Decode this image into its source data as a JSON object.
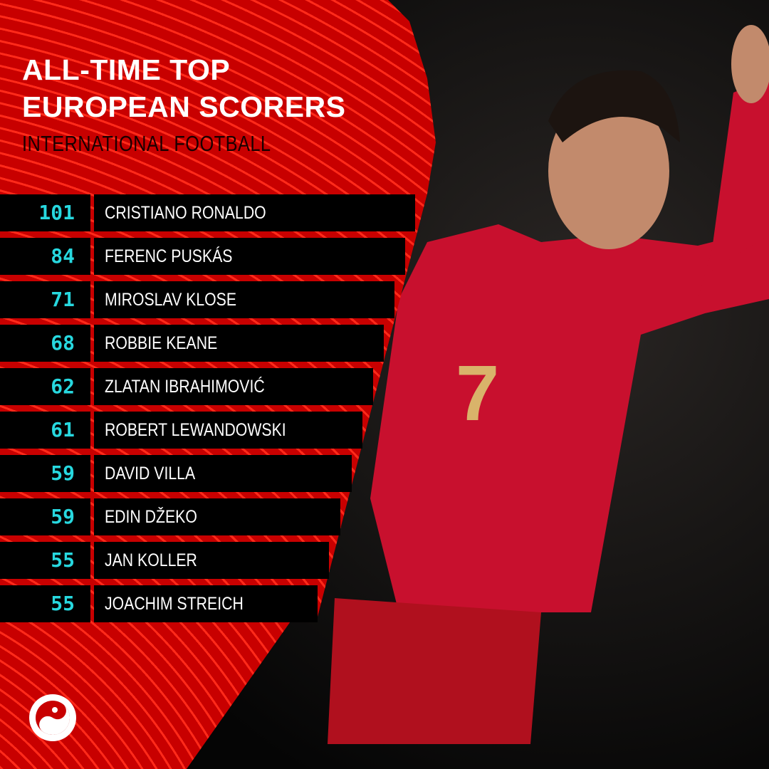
{
  "header": {
    "title_line1": "ALL-TIME TOP",
    "title_line2": "EUROPEAN SCORERS",
    "subtitle": "INTERNATIONAL FOOTBALL"
  },
  "scorers": [
    {
      "goals": "101",
      "name": "CRISTIANO RONALDO"
    },
    {
      "goals": "84",
      "name": "FERENC PUSKÁS"
    },
    {
      "goals": "71",
      "name": "MIROSLAV KLOSE"
    },
    {
      "goals": "68",
      "name": "ROBBIE KEANE"
    },
    {
      "goals": "62",
      "name": "ZLATAN IBRAHIMOVIĆ"
    },
    {
      "goals": "61",
      "name": "ROBERT LEWANDOWSKI"
    },
    {
      "goals": "59",
      "name": "DAVID VILLA"
    },
    {
      "goals": "59",
      "name": "EDIN DŽEKO"
    },
    {
      "goals": "55",
      "name": "JAN KOLLER"
    },
    {
      "goals": "55",
      "name": "JOACHIM STREICH"
    }
  ],
  "photo": {
    "jersey_number": "7"
  },
  "colors": {
    "accent_red": "#d40000",
    "number_cyan": "#27d8df",
    "background": "#000000"
  },
  "logo": {
    "icon": "yin-yang-logo-icon"
  }
}
